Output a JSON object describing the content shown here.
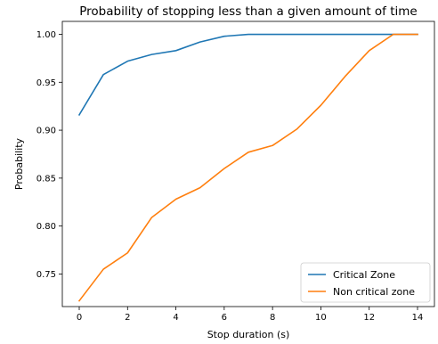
{
  "chart_data": {
    "type": "line",
    "title": "Probability of stopping less than a given amount of time",
    "xlabel": "Stop duration (s)",
    "ylabel": "Probability",
    "xlim": [
      -0.7,
      14.7
    ],
    "ylim": [
      0.716,
      1.0135
    ],
    "xticks": [
      0,
      2,
      4,
      6,
      8,
      10,
      12,
      14
    ],
    "yticks": [
      0.75,
      0.8,
      0.85,
      0.9,
      0.95,
      1.0
    ],
    "ytick_labels": [
      "0.75",
      "0.80",
      "0.85",
      "0.90",
      "0.95",
      "1.00"
    ],
    "grid": false,
    "legend_position": "lower right",
    "x": [
      0,
      1,
      2,
      3,
      4,
      5,
      6,
      7,
      8,
      9,
      10,
      11,
      12,
      13,
      14
    ],
    "series": [
      {
        "name": "Critical Zone",
        "color": "#1f77b4",
        "values": [
          0.916,
          0.958,
          0.972,
          0.979,
          0.983,
          0.992,
          0.998,
          1.0,
          1.0,
          1.0,
          1.0,
          1.0,
          1.0,
          1.0,
          1.0
        ]
      },
      {
        "name": "Non critical zone",
        "color": "#ff7f0e",
        "values": [
          0.722,
          0.755,
          0.772,
          0.809,
          0.828,
          0.84,
          0.86,
          0.877,
          0.884,
          0.901,
          0.926,
          0.956,
          0.983,
          1.0,
          1.0
        ]
      }
    ]
  }
}
